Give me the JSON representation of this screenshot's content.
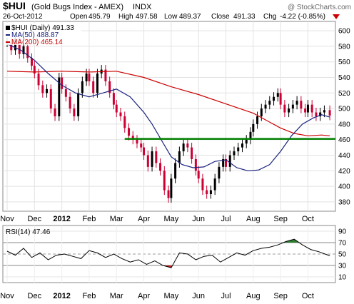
{
  "header": {
    "symbol": "$HUI",
    "name": "(Gold Bugs Index - AMEX)",
    "exchange": "INDX",
    "date": "26-Oct-2012",
    "open_label": "Open",
    "open": "495.79",
    "high_label": "High",
    "high": "497.58",
    "low_label": "Low",
    "low": "489.37",
    "close_label": "Close",
    "close": "491.33",
    "chg_label": "Chg",
    "chg": "-4.22 (-0.85%)",
    "watermark": "@ StockCharts.com"
  },
  "legend": {
    "price_label": "$HUI (Daily) 491.33",
    "ma50_label": "MA(50) 488.87",
    "ma200_label": "MA(200) 465.14",
    "rsi_label": "RSI(14) 47.46"
  },
  "colors": {
    "up": "#000000",
    "down": "#cc0033",
    "ma50": "#1a237e",
    "ma200": "#cc0000",
    "support": "#008000",
    "rsi": "#000000",
    "rsi_overbought": "#2e7d32",
    "rsi_oversold": "#b71c1c"
  },
  "chart_data": [
    {
      "type": "line",
      "panel": "price",
      "y_ticks": [
        380,
        400,
        420,
        440,
        460,
        480,
        500,
        520,
        540,
        560,
        580,
        600
      ],
      "ylim": [
        368,
        612
      ],
      "x_ticks": [
        "Nov",
        "Dec",
        "2012",
        "Feb",
        "Mar",
        "Apr",
        "May",
        "Jun",
        "Jul",
        "Aug",
        "Sep",
        "Oct"
      ],
      "x_tick_months": [
        0,
        1,
        2,
        3,
        4,
        5,
        6,
        7,
        8,
        9,
        10,
        11
      ],
      "xlim_months": [
        0,
        11.85
      ],
      "support_level": 461,
      "series": [
        {
          "name": "$HUI (Daily)",
          "x": [
            0.0,
            0.15,
            0.3,
            0.45,
            0.6,
            0.75,
            0.9,
            1.0,
            1.15,
            1.3,
            1.45,
            1.6,
            1.75,
            1.9,
            2.0,
            2.15,
            2.3,
            2.45,
            2.6,
            2.75,
            2.9,
            3.0,
            3.15,
            3.3,
            3.45,
            3.6,
            3.75,
            3.9,
            4.0,
            4.15,
            4.3,
            4.45,
            4.6,
            4.75,
            4.9,
            5.0,
            5.15,
            5.3,
            5.45,
            5.6,
            5.75,
            5.9,
            6.0,
            6.15,
            6.3,
            6.45,
            6.6,
            6.75,
            6.9,
            7.0,
            7.15,
            7.3,
            7.45,
            7.6,
            7.75,
            7.9,
            8.0,
            8.15,
            8.3,
            8.45,
            8.6,
            8.75,
            8.9,
            9.0,
            9.15,
            9.3,
            9.45,
            9.6,
            9.75,
            9.9,
            10.0,
            10.15,
            10.3,
            10.45,
            10.6,
            10.75,
            10.9,
            11.0,
            11.15,
            11.3,
            11.45,
            11.6,
            11.8
          ],
          "values": [
            585,
            575,
            590,
            570,
            580,
            565,
            555,
            545,
            530,
            520,
            525,
            500,
            490,
            540,
            525,
            515,
            500,
            490,
            520,
            535,
            545,
            535,
            520,
            545,
            550,
            535,
            520,
            505,
            495,
            490,
            475,
            465,
            460,
            455,
            450,
            440,
            425,
            445,
            430,
            420,
            395,
            385,
            410,
            430,
            445,
            455,
            450,
            435,
            420,
            410,
            395,
            390,
            395,
            410,
            425,
            435,
            425,
            440,
            445,
            450,
            455,
            460,
            470,
            480,
            490,
            500,
            505,
            510,
            515,
            520,
            505,
            495,
            500,
            505,
            510,
            500,
            495,
            505,
            495,
            490,
            495,
            498,
            491
          ]
        },
        {
          "name": "MA(50)",
          "x": [
            0.0,
            0.5,
            1.0,
            1.5,
            2.0,
            2.5,
            3.0,
            3.5,
            4.0,
            4.5,
            5.0,
            5.3,
            5.6,
            6.0,
            6.4,
            6.8,
            7.2,
            7.6,
            8.0,
            8.4,
            8.8,
            9.2,
            9.6,
            10.0,
            10.4,
            10.8,
            11.2,
            11.5,
            11.8
          ],
          "values": [
            583,
            575,
            562,
            545,
            530,
            520,
            515,
            520,
            525,
            515,
            495,
            480,
            462,
            438,
            428,
            424,
            425,
            432,
            434,
            424,
            420,
            421,
            428,
            445,
            465,
            480,
            488,
            492,
            489
          ]
        },
        {
          "name": "MA(200)",
          "x": [
            0.0,
            1.0,
            2.0,
            3.0,
            4.0,
            5.0,
            6.0,
            7.0,
            8.0,
            9.0,
            10.0,
            10.5,
            11.0,
            11.5,
            11.8
          ],
          "values": [
            548,
            547,
            548,
            547,
            548,
            540,
            528,
            518,
            506,
            494,
            475,
            468,
            465,
            466,
            465
          ]
        }
      ]
    },
    {
      "type": "line",
      "panel": "rsi",
      "y_ticks": [
        10,
        30,
        50,
        70,
        90
      ],
      "ylim": [
        0,
        100
      ],
      "overbought": 70,
      "oversold": 30,
      "series": [
        {
          "name": "RSI(14)",
          "x": [
            0.0,
            0.3,
            0.6,
            0.9,
            1.2,
            1.5,
            1.8,
            2.1,
            2.4,
            2.7,
            3.0,
            3.3,
            3.6,
            3.9,
            4.2,
            4.5,
            4.8,
            5.1,
            5.4,
            5.7,
            6.0,
            6.3,
            6.6,
            6.9,
            7.2,
            7.5,
            7.8,
            8.1,
            8.4,
            8.7,
            9.0,
            9.3,
            9.6,
            9.9,
            10.2,
            10.5,
            10.8,
            11.1,
            11.4,
            11.8
          ],
          "values": [
            55,
            48,
            60,
            44,
            52,
            40,
            48,
            50,
            46,
            42,
            56,
            52,
            44,
            50,
            42,
            36,
            40,
            32,
            38,
            30,
            26,
            52,
            50,
            40,
            46,
            48,
            36,
            44,
            52,
            48,
            56,
            60,
            62,
            66,
            72,
            76,
            66,
            58,
            54,
            47
          ]
        }
      ]
    }
  ]
}
